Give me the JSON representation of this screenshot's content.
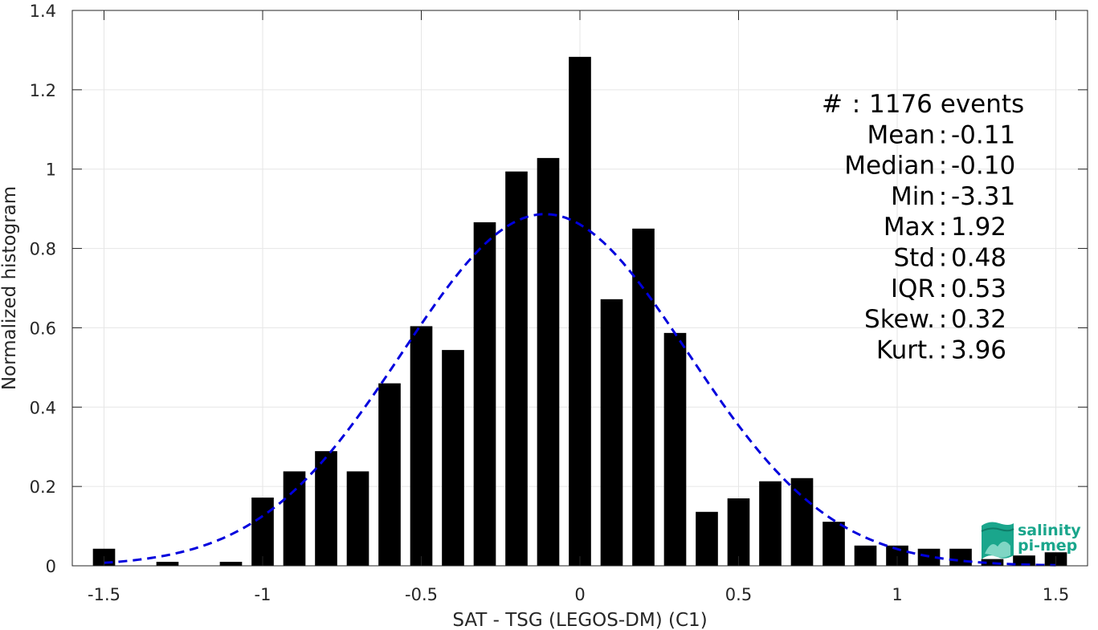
{
  "chart_data": {
    "type": "bar",
    "xlabel": "SAT - TSG (LEGOS-DM) (C1)",
    "ylabel": "Normalized histogram",
    "xlim": [
      -1.6,
      1.6
    ],
    "ylim": [
      0,
      1.4
    ],
    "xticks": [
      -1.5,
      -1,
      -0.5,
      0,
      0.5,
      1,
      1.5
    ],
    "xtick_labels": [
      "-1.5",
      "-1",
      "-0.5",
      "0",
      "0.5",
      "1",
      "1.5"
    ],
    "yticks": [
      0,
      0.2,
      0.4,
      0.6,
      0.8,
      1,
      1.2,
      1.4
    ],
    "ytick_labels": [
      "0",
      "0.2",
      "0.4",
      "0.6",
      "0.8",
      "1",
      "1.2",
      "1.4"
    ],
    "grid": true,
    "bin_width": 0.1,
    "bar_width": 0.07,
    "bar_color": "#000000",
    "x": [
      -1.5,
      -1.3,
      -1.1,
      -1.0,
      -0.9,
      -0.8,
      -0.7,
      -0.6,
      -0.5,
      -0.4,
      -0.3,
      -0.2,
      -0.1,
      0.0,
      0.1,
      0.2,
      0.3,
      0.4,
      0.5,
      0.6,
      0.7,
      0.8,
      0.9,
      1.0,
      1.1,
      1.2,
      1.3,
      1.4,
      1.5
    ],
    "values": [
      0.043,
      0.01,
      0.01,
      0.172,
      0.238,
      0.289,
      0.238,
      0.46,
      0.604,
      0.544,
      0.866,
      0.994,
      1.028,
      1.283,
      0.672,
      0.85,
      0.587,
      0.136,
      0.17,
      0.213,
      0.221,
      0.111,
      0.051,
      0.051,
      0.043,
      0.043,
      0.017,
      0.026,
      0.034
    ],
    "fit_curve": {
      "style": "dashed",
      "color": "#0000dd",
      "mean": -0.11,
      "std": 0.45,
      "x_range": [
        -1.5,
        1.5
      ]
    }
  },
  "stats": [
    {
      "label": "#  ",
      "value": "1176 events"
    },
    {
      "label": "Mean",
      "value": "-0.11"
    },
    {
      "label": "Median",
      "value": "-0.10"
    },
    {
      "label": "Min",
      "value": "-3.31"
    },
    {
      "label": "Max",
      "value": "1.92"
    },
    {
      "label": "Std",
      "value": "0.48"
    },
    {
      "label": "IQR",
      "value": "0.53"
    },
    {
      "label": "Skew.",
      "value": "0.32"
    },
    {
      "label": "Kurt.",
      "value": "3.96"
    }
  ],
  "logo": {
    "line1": "salinity",
    "line2": "pi-mep",
    "color": "#1aa68c"
  }
}
